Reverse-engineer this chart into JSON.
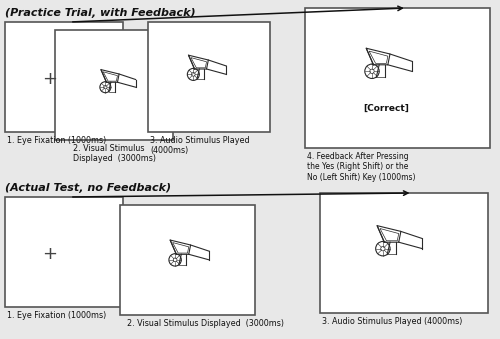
{
  "bg_color": "#e8e8e8",
  "screen_color": "#ffffff",
  "screen_border": "#555555",
  "title1": "(Practice Trial, with Feedback)",
  "title2": "(Actual Test, no Feedback)",
  "label1_top": "1. Eye Fixation (1000ms)",
  "label2_top": "2. Visual Stimulus\nDisplayed  (3000ms)",
  "label3_top": "3. Audio Stimulus Played\n(4000ms)",
  "label4_top": "4. Feedback After Pressing\nthe Yes (Right Shift) or the\nNo (Left Shift) Key (1000ms)",
  "correct_label": "[Correct]",
  "label1_bot": "1. Eye Fixation (1000ms)",
  "label2_bot": "2. Visual Stimulus Displayed  (3000ms)",
  "label3_bot": "3. Audio Stimulus Played (4000ms)",
  "arrow_color": "#111111",
  "text_color": "#111111",
  "cross_color": "#444444",
  "lw_screen": 1.2
}
